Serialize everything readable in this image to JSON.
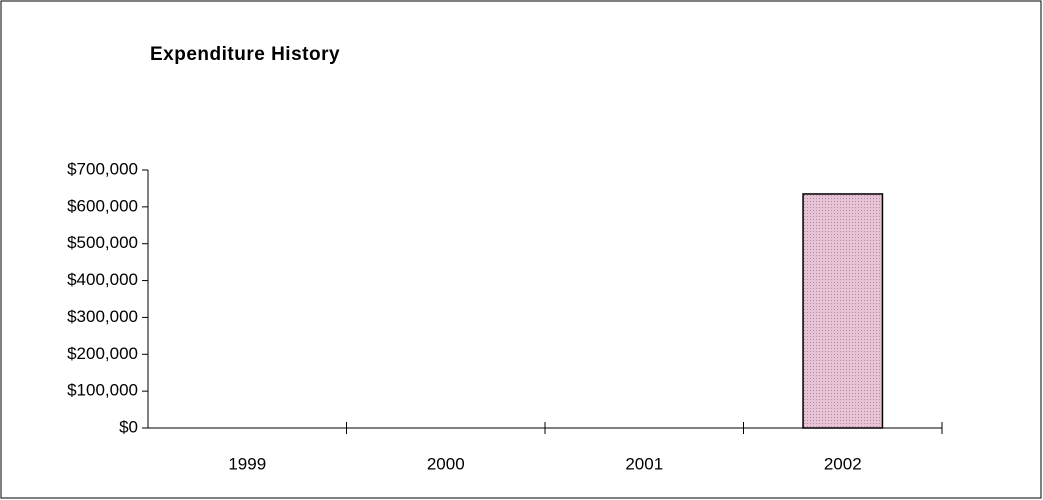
{
  "chart_data": {
    "type": "bar",
    "title": "Expenditure History",
    "categories": [
      "1999",
      "2000",
      "2001",
      "2002"
    ],
    "values": [
      0,
      0,
      0,
      635000
    ],
    "color": "#dcb4c8",
    "ylim": [
      0,
      700000
    ],
    "yticks": [
      {
        "value": 0,
        "label": "$0"
      },
      {
        "value": 100000,
        "label": "$100,000"
      },
      {
        "value": 200000,
        "label": "$200,000"
      },
      {
        "value": 300000,
        "label": "$300,000"
      },
      {
        "value": 400000,
        "label": "$400,000"
      },
      {
        "value": 500000,
        "label": "$500,000"
      },
      {
        "value": 600000,
        "label": "$600,000"
      },
      {
        "value": 700000,
        "label": "$700,000"
      }
    ],
    "grid": false
  }
}
